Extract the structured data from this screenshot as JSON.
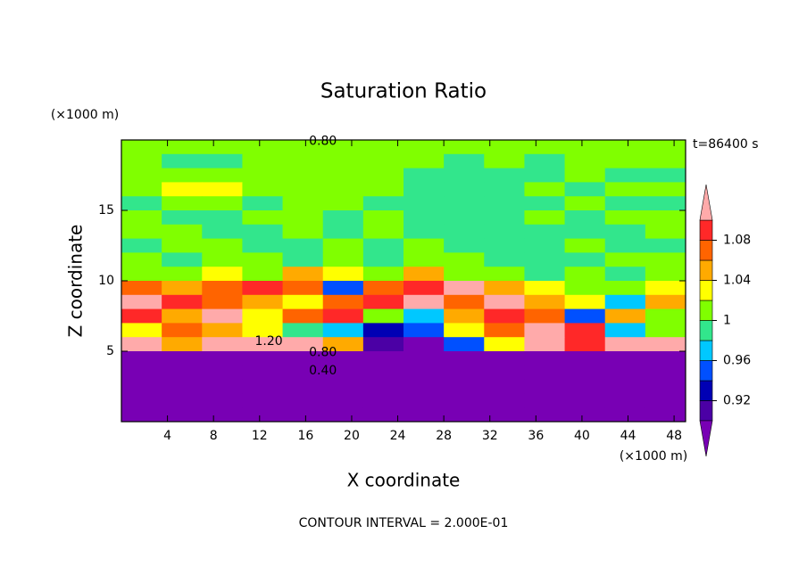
{
  "chart_data": {
    "type": "contour",
    "title": "Saturation Ratio",
    "xlabel": "X coordinate",
    "ylabel": "Z coordinate",
    "xunit": "(×1000 m)",
    "yunit": "(×1000 m)",
    "time_label": "t=86400 s",
    "footer": "CONTOUR INTERVAL = 2.000E-01",
    "xlim": [
      0,
      49
    ],
    "ylim": [
      0,
      20
    ],
    "xticks": [
      4,
      8,
      12,
      16,
      20,
      24,
      28,
      32,
      36,
      40,
      44,
      48
    ],
    "yticks": [
      5,
      10,
      15
    ],
    "x": [
      1.75,
      5.25,
      8.75,
      12.25,
      15.75,
      19.25,
      22.75,
      26.25,
      29.75,
      33.25,
      36.75,
      40.25,
      43.75,
      47.25
    ],
    "y": [
      19.5,
      18.5,
      17.5,
      16.5,
      15.5,
      14.5,
      13.5,
      12.5,
      11.5,
      10.5,
      9.5,
      8.5,
      7.5,
      6.5,
      5.5,
      4.5,
      3.5,
      2.5,
      1.5,
      0.5
    ],
    "z": [
      [
        1.01,
        1.01,
        1.01,
        1.01,
        1.01,
        1.01,
        1.01,
        1.01,
        1.01,
        1.01,
        1.01,
        1.01,
        1.01,
        1.01
      ],
      [
        1.01,
        0.99,
        0.99,
        1.01,
        1.01,
        1.01,
        1.01,
        1.01,
        0.99,
        1.01,
        0.99,
        1.01,
        1.01,
        1.01
      ],
      [
        1.01,
        1.01,
        1.01,
        1.01,
        1.01,
        1.01,
        1.01,
        0.99,
        0.99,
        0.99,
        0.99,
        1.01,
        0.99,
        0.99
      ],
      [
        1.01,
        1.03,
        1.03,
        1.01,
        1.01,
        1.01,
        1.01,
        0.99,
        0.99,
        0.99,
        1.01,
        0.99,
        1.01,
        1.01
      ],
      [
        0.99,
        1.01,
        1.01,
        0.99,
        1.01,
        1.01,
        0.99,
        0.99,
        0.99,
        0.99,
        0.99,
        1.01,
        0.99,
        0.99
      ],
      [
        1.01,
        0.99,
        0.99,
        1.01,
        1.01,
        0.99,
        1.01,
        0.99,
        0.99,
        0.99,
        1.01,
        0.99,
        1.01,
        1.01
      ],
      [
        1.01,
        1.01,
        0.99,
        0.99,
        1.01,
        0.99,
        1.01,
        0.99,
        0.99,
        0.99,
        0.99,
        0.99,
        0.99,
        1.01
      ],
      [
        0.99,
        1.01,
        1.01,
        0.99,
        0.99,
        1.01,
        0.99,
        1.01,
        0.99,
        0.99,
        0.99,
        1.01,
        0.99,
        0.99
      ],
      [
        1.01,
        0.99,
        1.01,
        1.01,
        0.99,
        1.01,
        0.99,
        1.01,
        1.01,
        0.99,
        0.99,
        0.99,
        1.01,
        1.01
      ],
      [
        1.01,
        1.01,
        1.03,
        1.01,
        1.05,
        1.03,
        1.01,
        1.05,
        1.01,
        1.01,
        0.99,
        1.01,
        0.99,
        1.01
      ],
      [
        1.07,
        1.05,
        1.07,
        1.09,
        1.07,
        0.95,
        1.07,
        1.09,
        1.11,
        1.05,
        1.03,
        1.01,
        1.01,
        1.03
      ],
      [
        1.11,
        1.09,
        1.07,
        1.05,
        1.03,
        1.07,
        1.09,
        1.11,
        1.07,
        1.11,
        1.05,
        1.03,
        0.97,
        1.05
      ],
      [
        1.09,
        1.05,
        1.11,
        1.03,
        1.07,
        1.09,
        1.01,
        0.97,
        1.05,
        1.09,
        1.07,
        0.95,
        1.05,
        1.01
      ],
      [
        1.03,
        1.07,
        1.05,
        1.03,
        0.99,
        0.97,
        0.93,
        0.95,
        1.03,
        1.07,
        1.11,
        1.09,
        0.97,
        1.01
      ],
      [
        1.11,
        1.05,
        1.15,
        1.15,
        1.11,
        1.05,
        0.91,
        0.89,
        0.95,
        1.03,
        1.11,
        1.09,
        1.13,
        1.11
      ],
      [
        0.85,
        0.85,
        0.85,
        0.85,
        0.85,
        0.85,
        0.85,
        0.85,
        0.85,
        0.85,
        0.85,
        0.85,
        0.85,
        0.85
      ],
      [
        0.7,
        0.7,
        0.7,
        0.7,
        0.7,
        0.7,
        0.7,
        0.7,
        0.7,
        0.7,
        0.7,
        0.7,
        0.7,
        0.7
      ],
      [
        0.55,
        0.55,
        0.55,
        0.55,
        0.55,
        0.55,
        0.55,
        0.55,
        0.55,
        0.55,
        0.55,
        0.55,
        0.55,
        0.55
      ],
      [
        0.4,
        0.4,
        0.4,
        0.4,
        0.4,
        0.4,
        0.4,
        0.4,
        0.4,
        0.4,
        0.4,
        0.4,
        0.4,
        0.4
      ],
      [
        0.3,
        0.3,
        0.3,
        0.3,
        0.3,
        0.3,
        0.3,
        0.3,
        0.3,
        0.3,
        0.3,
        0.3,
        0.3,
        0.3
      ]
    ],
    "levels": [
      0.9,
      0.92,
      0.94,
      0.96,
      0.98,
      1,
      1.02,
      1.04,
      1.06,
      1.08,
      1.1
    ],
    "colors": [
      "#7800b4",
      "#4b00a5",
      "#0000b4",
      "#0050ff",
      "#00c8ff",
      "#32e68c",
      "#80ff00",
      "#ffff00",
      "#ffaa00",
      "#ff6400",
      "#ff2828",
      "#ffaaaa"
    ],
    "colorbar_ticks": [
      0.92,
      0.96,
      1,
      1.04,
      1.08
    ],
    "contour_labels": [
      {
        "value": 0.8,
        "label": "0.80",
        "x": 17.5,
        "y": 19.9
      },
      {
        "value": 1.2,
        "label": "1.20",
        "x": 12.8,
        "y": 5.7
      },
      {
        "value": 0.8,
        "label": "0.80",
        "x": 17.5,
        "y": 4.9
      },
      {
        "value": 0.4,
        "label": "0.40",
        "x": 17.5,
        "y": 3.6
      }
    ]
  }
}
